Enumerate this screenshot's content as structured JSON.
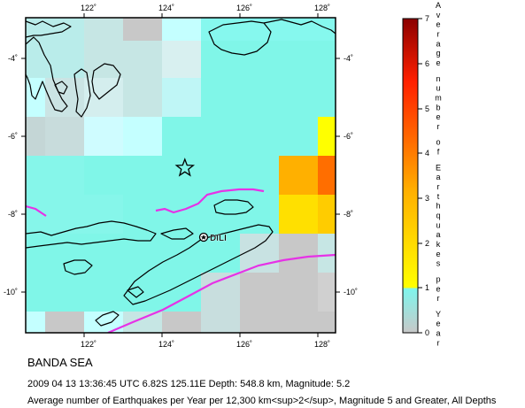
{
  "map": {
    "region": "BANDA SEA",
    "event_line": "2009 04 13 13:36:45 UTC 6.82S 125.11E Depth: 548.8 km, Magnitude: 5.2",
    "note_line": "Average number of Earthquakes per Year per 12,300 km<sup>2</sup>, Magnitude 5 and Greater, All Depths",
    "place_label": "DILI",
    "lon_ticks": [
      "122˚",
      "124˚",
      "126˚",
      "128˚"
    ],
    "lat_ticks": [
      "-4˚",
      "-6˚",
      "-8˚",
      "-10˚"
    ],
    "epicenter": {
      "lat": -6.82,
      "lon": 125.11
    },
    "bounds": {
      "lon_min": 121,
      "lon_max": 129,
      "lat_min": -11,
      "lat_max": -3
    }
  },
  "legend": {
    "title_letters": [
      "A",
      "v",
      "e",
      "r",
      "a",
      "g",
      "e",
      "n",
      "u",
      "m",
      "b",
      "e",
      "r",
      "o",
      "f",
      "E",
      "a",
      "r",
      "t",
      "h",
      "q",
      "u",
      "a",
      "k",
      "e",
      "s",
      "p",
      "e",
      "r",
      "Y",
      "e",
      "a",
      "r"
    ],
    "tick_labels": [
      "0",
      "1",
      "2",
      "3",
      "4",
      "5",
      "6",
      "7"
    ],
    "colors": {
      "low_grey": "#c8c8c8",
      "low_cyan": "#7ff5ec",
      "yellow": "#ffff00",
      "orange": "#ff8c00",
      "red": "#ff2000",
      "darkred": "#8b0000"
    }
  },
  "colors": {
    "sea": "#80f6e8",
    "plate_boundary": "#e632e6",
    "coastline": "#000000"
  }
}
